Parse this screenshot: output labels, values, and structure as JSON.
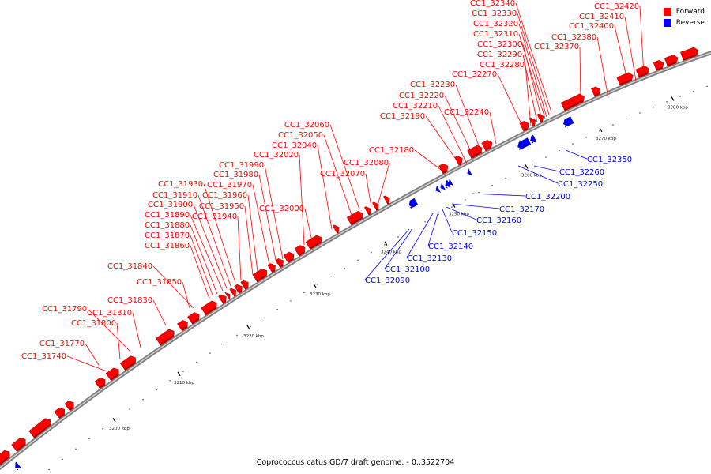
{
  "legend": {
    "forward_label": "Forward",
    "reverse_label": "Reverse",
    "forward_color": "#ff0000",
    "reverse_color": "#0000ff"
  },
  "caption": "Coprococcus catus GD/7 draft genome. - 0..3522704",
  "ticks": [
    "3200 kbp",
    "3210 kbp",
    "3220 kbp",
    "3230 kbp",
    "3240 kbp",
    "3250 kbp",
    "3260 kbp",
    "3270 kbp",
    "3280 kbp"
  ],
  "forward_genes": [
    "CC1_31740",
    "CC1_31770",
    "CC1_31790",
    "CC1_31800",
    "CC1_31810",
    "CC1_31830",
    "CC1_31840",
    "CC1_31850",
    "CC1_31860",
    "CC1_31870",
    "CC1_31880",
    "CC1_31890",
    "CC1_31900",
    "CC1_31910",
    "CC1_31930",
    "CC1_31940",
    "CC1_31950",
    "CC1_31960",
    "CC1_31970",
    "CC1_31980",
    "CC1_31990",
    "CC1_32000",
    "CC1_32020",
    "CC1_32040",
    "CC1_32050",
    "CC1_32060",
    "CC1_32070",
    "CC1_32080",
    "CC1_32180",
    "CC1_32190",
    "CC1_32210",
    "CC1_32220",
    "CC1_32230",
    "CC1_32240",
    "CC1_32270",
    "CC1_32280",
    "CC1_32290",
    "CC1_32300",
    "CC1_32310",
    "CC1_32320",
    "CC1_32330",
    "CC1_32340",
    "CC1_32370",
    "CC1_32380",
    "CC1_32400",
    "CC1_32410",
    "CC1_32420"
  ],
  "reverse_genes": [
    "CC1_32090",
    "CC1_32100",
    "CC1_32130",
    "CC1_32140",
    "CC1_32150",
    "CC1_32160",
    "CC1_32170",
    "CC1_32200",
    "CC1_32250",
    "CC1_32260",
    "CC1_32350"
  ]
}
